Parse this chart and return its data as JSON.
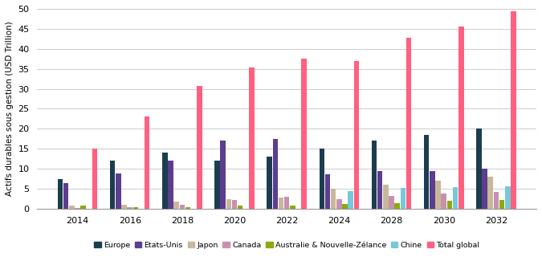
{
  "years": [
    2014,
    2016,
    2018,
    2020,
    2022,
    2024,
    2028,
    2030,
    2032
  ],
  "series": {
    "Europe": [
      7.5,
      12.0,
      14.0,
      12.0,
      13.0,
      15.0,
      17.0,
      18.5,
      20.0
    ],
    "Etats-Unis": [
      6.5,
      8.8,
      12.0,
      17.0,
      17.5,
      8.7,
      9.5,
      9.5,
      10.0
    ],
    "Japon": [
      0.9,
      1.0,
      1.8,
      2.5,
      2.8,
      5.0,
      6.0,
      7.0,
      8.0
    ],
    "Canada": [
      0.3,
      0.5,
      1.0,
      2.2,
      3.0,
      2.5,
      3.2,
      3.8,
      4.3
    ],
    "Australie & Nouvelle-Zelance": [
      0.8,
      0.5,
      0.5,
      0.8,
      0.8,
      1.2,
      1.5,
      2.0,
      2.2
    ],
    "Chine": [
      0.0,
      0.0,
      0.0,
      0.0,
      0.0,
      4.5,
      5.2,
      5.4,
      5.7
    ],
    "Total global": [
      15.0,
      23.0,
      30.7,
      35.3,
      37.5,
      37.0,
      42.7,
      45.5,
      49.4
    ]
  },
  "colors": {
    "Europe": "#1c3d4f",
    "Etats-Unis": "#5c3d8f",
    "Japon": "#c8b89a",
    "Canada": "#c890b0",
    "Australie & Nouvelle-Zelance": "#8aaa10",
    "Chine": "#78c8d8",
    "Total global": "#ff6080"
  },
  "ylabel": "Actifs durables sous gestion (USD Trillion)",
  "ylim": [
    0,
    50
  ],
  "yticks": [
    0,
    5,
    10,
    15,
    20,
    25,
    30,
    35,
    40,
    45,
    50
  ],
  "legend_labels": [
    "Europe",
    "Etats-Unis",
    "Japon",
    "Canada",
    "Australie & Nouvelle-Zélance",
    "Chine",
    "Total global"
  ],
  "background_color": "#ffffff",
  "grid_color": "#cccccc"
}
